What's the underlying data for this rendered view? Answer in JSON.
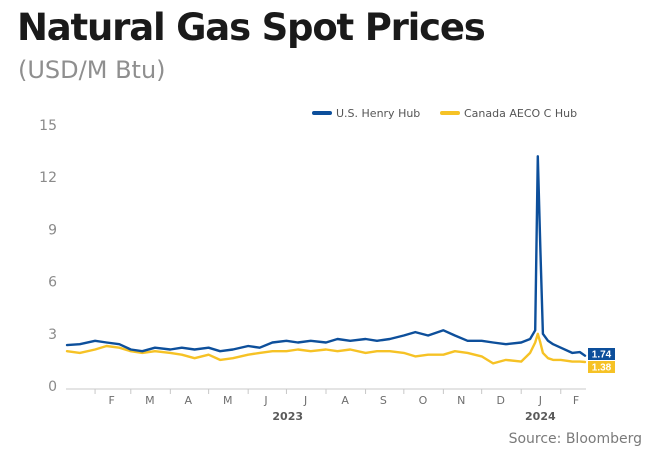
{
  "title": "Natural Gas Spot Prices",
  "subtitle": "(USD/M Btu)",
  "source": "Source: Bloomberg",
  "chart_data": {
    "type": "line",
    "title": "Natural Gas Spot Prices",
    "subtitle": "(USD/M Btu)",
    "xlabel": "",
    "ylabel": "",
    "ylim": [
      0,
      15
    ],
    "yticks": [
      "0",
      "3",
      "6",
      "9",
      "12",
      "15"
    ],
    "grid": false,
    "legend_position": "top-right",
    "x_tick_labels": [
      "F",
      "M",
      "A",
      "M",
      "J",
      "J",
      "A",
      "S",
      "O",
      "N",
      "D",
      "J",
      "F"
    ],
    "year_labels": [
      "2023",
      "2024"
    ],
    "x": [
      "2023-01-10",
      "2023-01-20",
      "2023-02-01",
      "2023-02-10",
      "2023-02-20",
      "2023-03-01",
      "2023-03-10",
      "2023-03-20",
      "2023-04-01",
      "2023-04-10",
      "2023-04-20",
      "2023-05-01",
      "2023-05-10",
      "2023-05-20",
      "2023-06-01",
      "2023-06-10",
      "2023-06-20",
      "2023-07-01",
      "2023-07-10",
      "2023-07-20",
      "2023-08-01",
      "2023-08-10",
      "2023-08-20",
      "2023-09-01",
      "2023-09-10",
      "2023-09-20",
      "2023-10-01",
      "2023-10-10",
      "2023-10-20",
      "2023-11-01",
      "2023-11-10",
      "2023-11-20",
      "2023-12-01",
      "2023-12-10",
      "2023-12-20",
      "2024-01-01",
      "2024-01-08",
      "2024-01-12",
      "2024-01-14",
      "2024-01-16",
      "2024-01-18",
      "2024-01-22",
      "2024-01-26",
      "2024-02-01",
      "2024-02-10",
      "2024-02-16",
      "2024-02-20"
    ],
    "series": [
      {
        "name": "U.S. Henry Hub",
        "color": "#0d4f9b",
        "end_label": "1.74",
        "values": [
          2.35,
          2.4,
          2.6,
          2.5,
          2.4,
          2.1,
          2.0,
          2.2,
          2.1,
          2.2,
          2.1,
          2.2,
          2.0,
          2.1,
          2.3,
          2.2,
          2.5,
          2.6,
          2.5,
          2.6,
          2.5,
          2.7,
          2.6,
          2.7,
          2.6,
          2.7,
          2.9,
          3.1,
          2.9,
          3.2,
          2.9,
          2.6,
          2.6,
          2.5,
          2.4,
          2.5,
          2.7,
          3.2,
          13.2,
          8.0,
          3.0,
          2.6,
          2.4,
          2.2,
          1.9,
          1.95,
          1.74
        ]
      },
      {
        "name": "Canada AECO C Hub",
        "color": "#f6c225",
        "end_label": "1.38",
        "values": [
          2.0,
          1.9,
          2.1,
          2.3,
          2.2,
          2.0,
          1.9,
          2.0,
          1.9,
          1.8,
          1.6,
          1.8,
          1.5,
          1.6,
          1.8,
          1.9,
          2.0,
          2.0,
          2.1,
          2.0,
          2.1,
          2.0,
          2.1,
          1.9,
          2.0,
          2.0,
          1.9,
          1.7,
          1.8,
          1.8,
          2.0,
          1.9,
          1.7,
          1.3,
          1.5,
          1.4,
          1.9,
          2.5,
          3.0,
          2.5,
          1.9,
          1.6,
          1.5,
          1.5,
          1.4,
          1.4,
          1.38
        ]
      }
    ]
  }
}
